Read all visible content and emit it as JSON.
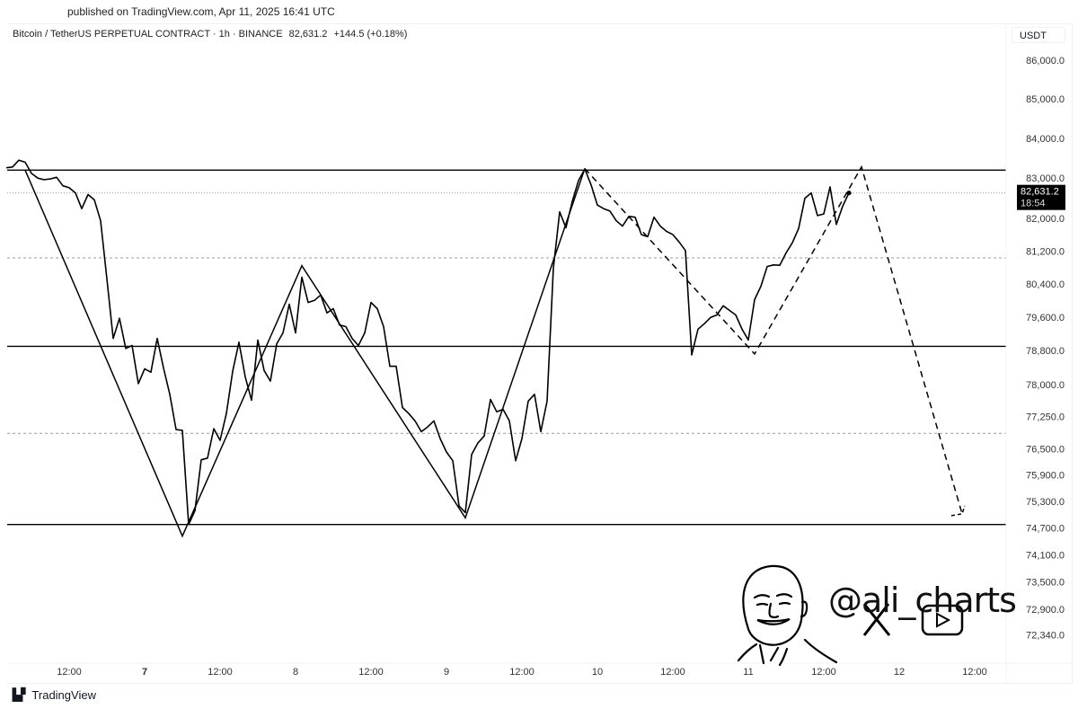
{
  "published": "published on TradingView.com, Apr 11, 2025 16:41 UTC",
  "header": {
    "symbol": "Bitcoin / TetherUS PERPETUAL CONTRACT · 1h · BINANCE",
    "last": "82,631.2",
    "change": "+144.5 (+0.18%)"
  },
  "footer": {
    "brand": "TradingView"
  },
  "watermark": {
    "handle": "@ali_charts",
    "icons": [
      "x-logo-icon",
      "youtube-icon",
      "avatar-sketch"
    ]
  },
  "chart_data": {
    "type": "line",
    "scale": "log",
    "grid": false,
    "y_unit": "USDT",
    "ylim": [
      72000,
      86400
    ],
    "xlim": [
      "2025-04-05 22:00",
      "2025-04-12 15:00"
    ],
    "y_ticks": [
      "86,000.0",
      "85,000.0",
      "84,000.0",
      "83,000.0",
      "82,000.0",
      "81,200.0",
      "80,400.0",
      "79,600.0",
      "78,800.0",
      "78,000.0",
      "77,250.0",
      "76,500.0",
      "75,900.0",
      "75,300.0",
      "74,700.0",
      "74,100.0",
      "73,500.0",
      "72,900.0",
      "72,340.0"
    ],
    "x_ticks": [
      {
        "t": "2025-04-06 12:00",
        "label": "12:00"
      },
      {
        "t": "2025-04-07 00:00",
        "label": "7",
        "bold": true
      },
      {
        "t": "2025-04-07 12:00",
        "label": "12:00"
      },
      {
        "t": "2025-04-08 00:00",
        "label": "8"
      },
      {
        "t": "2025-04-08 12:00",
        "label": "12:00"
      },
      {
        "t": "2025-04-09 00:00",
        "label": "9"
      },
      {
        "t": "2025-04-09 12:00",
        "label": "12:00"
      },
      {
        "t": "2025-04-10 00:00",
        "label": "10"
      },
      {
        "t": "2025-04-10 12:00",
        "label": "12:00"
      },
      {
        "t": "2025-04-11 00:00",
        "label": "11"
      },
      {
        "t": "2025-04-11 12:00",
        "label": "12:00"
      },
      {
        "t": "2025-04-12 00:00",
        "label": "12"
      },
      {
        "t": "2025-04-12 12:00",
        "label": "12:00"
      }
    ],
    "last_price": {
      "value": 82631.2,
      "label": "82,631.2",
      "countdown": "18:54",
      "color": "#000000"
    },
    "series": [
      {
        "color": "#000000",
        "points": [
          [
            "2025-04-06 02:00",
            83260
          ],
          [
            "2025-04-06 03:00",
            83280
          ],
          [
            "2025-04-06 04:00",
            83450
          ],
          [
            "2025-04-06 05:00",
            83400
          ],
          [
            "2025-04-06 06:00",
            83120
          ],
          [
            "2025-04-06 07:00",
            83000
          ],
          [
            "2025-04-06 08:00",
            82960
          ],
          [
            "2025-04-06 09:00",
            82980
          ],
          [
            "2025-04-06 10:00",
            83020
          ],
          [
            "2025-04-06 11:00",
            82810
          ],
          [
            "2025-04-06 12:00",
            82760
          ],
          [
            "2025-04-06 13:00",
            82630
          ],
          [
            "2025-04-06 14:00",
            82240
          ],
          [
            "2025-04-06 15:00",
            82590
          ],
          [
            "2025-04-06 16:00",
            82460
          ],
          [
            "2025-04-06 17:00",
            81940
          ],
          [
            "2025-04-06 18:00",
            80520
          ],
          [
            "2025-04-06 19:00",
            79090
          ],
          [
            "2025-04-06 20:00",
            79570
          ],
          [
            "2025-04-06 21:00",
            78850
          ],
          [
            "2025-04-06 22:00",
            78920
          ],
          [
            "2025-04-06 23:00",
            78020
          ],
          [
            "2025-04-07 00:00",
            78370
          ],
          [
            "2025-04-07 01:00",
            78290
          ],
          [
            "2025-04-07 02:00",
            79090
          ],
          [
            "2025-04-07 03:00",
            78390
          ],
          [
            "2025-04-07 04:00",
            77770
          ],
          [
            "2025-04-07 05:00",
            76950
          ],
          [
            "2025-04-07 06:00",
            76930
          ],
          [
            "2025-04-07 07:00",
            74780
          ],
          [
            "2025-04-07 08:00",
            75090
          ],
          [
            "2025-04-07 09:00",
            76250
          ],
          [
            "2025-04-07 10:00",
            76290
          ],
          [
            "2025-04-07 11:00",
            76970
          ],
          [
            "2025-04-07 12:00",
            76700
          ],
          [
            "2025-04-07 13:00",
            77320
          ],
          [
            "2025-04-07 14:00",
            78310
          ],
          [
            "2025-04-07 15:00",
            79000
          ],
          [
            "2025-04-07 16:00",
            78180
          ],
          [
            "2025-04-07 17:00",
            77630
          ],
          [
            "2025-04-07 18:00",
            79050
          ],
          [
            "2025-04-07 19:00",
            78330
          ],
          [
            "2025-04-07 20:00",
            78080
          ],
          [
            "2025-04-07 21:00",
            78960
          ],
          [
            "2025-04-07 22:00",
            79220
          ],
          [
            "2025-04-07 23:00",
            79910
          ],
          [
            "2025-04-08 00:00",
            79220
          ],
          [
            "2025-04-08 01:00",
            80560
          ],
          [
            "2025-04-08 02:00",
            79950
          ],
          [
            "2025-04-08 03:00",
            80000
          ],
          [
            "2025-04-08 04:00",
            80130
          ],
          [
            "2025-04-08 05:00",
            79700
          ],
          [
            "2025-04-08 06:00",
            79800
          ],
          [
            "2025-04-08 07:00",
            79410
          ],
          [
            "2025-04-08 08:00",
            79370
          ],
          [
            "2025-04-08 09:00",
            79090
          ],
          [
            "2025-04-08 10:00",
            78920
          ],
          [
            "2025-04-08 11:00",
            79220
          ],
          [
            "2025-04-08 12:00",
            79950
          ],
          [
            "2025-04-08 13:00",
            79800
          ],
          [
            "2025-04-08 14:00",
            79370
          ],
          [
            "2025-04-08 15:00",
            78430
          ],
          [
            "2025-04-08 16:00",
            78430
          ],
          [
            "2025-04-08 17:00",
            77460
          ],
          [
            "2025-04-08 18:00",
            77320
          ],
          [
            "2025-04-08 19:00",
            77150
          ],
          [
            "2025-04-08 20:00",
            76900
          ],
          [
            "2025-04-08 21:00",
            77010
          ],
          [
            "2025-04-08 22:00",
            77150
          ],
          [
            "2025-04-08 23:00",
            76740
          ],
          [
            "2025-04-09 00:00",
            76430
          ],
          [
            "2025-04-09 01:00",
            76230
          ],
          [
            "2025-04-09 02:00",
            75200
          ],
          [
            "2025-04-09 03:00",
            75050
          ],
          [
            "2025-04-09 04:00",
            76370
          ],
          [
            "2025-04-09 05:00",
            76640
          ],
          [
            "2025-04-09 06:00",
            76800
          ],
          [
            "2025-04-09 07:00",
            77650
          ],
          [
            "2025-04-09 08:00",
            77360
          ],
          [
            "2025-04-09 09:00",
            77420
          ],
          [
            "2025-04-09 10:00",
            77150
          ],
          [
            "2025-04-09 11:00",
            76230
          ],
          [
            "2025-04-09 12:00",
            76740
          ],
          [
            "2025-04-09 13:00",
            77610
          ],
          [
            "2025-04-09 14:00",
            77770
          ],
          [
            "2025-04-09 15:00",
            76900
          ],
          [
            "2025-04-09 16:00",
            77610
          ],
          [
            "2025-04-09 17:00",
            80780
          ],
          [
            "2025-04-09 18:00",
            82160
          ],
          [
            "2025-04-09 19:00",
            81770
          ],
          [
            "2025-04-09 20:00",
            82420
          ],
          [
            "2025-04-09 21:00",
            82940
          ],
          [
            "2025-04-09 22:00",
            83230
          ],
          [
            "2025-04-09 23:00",
            82830
          ],
          [
            "2025-04-10 00:00",
            82330
          ],
          [
            "2025-04-10 01:00",
            82240
          ],
          [
            "2025-04-10 02:00",
            82180
          ],
          [
            "2025-04-10 03:00",
            81940
          ],
          [
            "2025-04-10 04:00",
            81810
          ],
          [
            "2025-04-10 05:00",
            82050
          ],
          [
            "2025-04-10 06:00",
            82030
          ],
          [
            "2025-04-10 07:00",
            81600
          ],
          [
            "2025-04-10 08:00",
            81550
          ],
          [
            "2025-04-10 09:00",
            82030
          ],
          [
            "2025-04-10 10:00",
            81810
          ],
          [
            "2025-04-10 11:00",
            81680
          ],
          [
            "2025-04-10 12:00",
            81600
          ],
          [
            "2025-04-10 13:00",
            81420
          ],
          [
            "2025-04-10 14:00",
            81210
          ],
          [
            "2025-04-10 15:00",
            78700
          ],
          [
            "2025-04-10 16:00",
            79310
          ],
          [
            "2025-04-10 17:00",
            79440
          ],
          [
            "2025-04-10 18:00",
            79590
          ],
          [
            "2025-04-10 19:00",
            79650
          ],
          [
            "2025-04-10 20:00",
            79870
          ],
          [
            "2025-04-10 21:00",
            79760
          ],
          [
            "2025-04-10 22:00",
            79650
          ],
          [
            "2025-04-10 23:00",
            79310
          ],
          [
            "2025-04-11 00:00",
            79050
          ],
          [
            "2025-04-11 01:00",
            80020
          ],
          [
            "2025-04-11 02:00",
            80340
          ],
          [
            "2025-04-11 03:00",
            80820
          ],
          [
            "2025-04-11 04:00",
            80860
          ],
          [
            "2025-04-11 05:00",
            80850
          ],
          [
            "2025-04-11 06:00",
            81150
          ],
          [
            "2025-04-11 07:00",
            81400
          ],
          [
            "2025-04-11 08:00",
            81750
          ],
          [
            "2025-04-11 09:00",
            82500
          ],
          [
            "2025-04-11 10:00",
            82630
          ],
          [
            "2025-04-11 11:00",
            82070
          ],
          [
            "2025-04-11 12:00",
            82110
          ],
          [
            "2025-04-11 13:00",
            82780
          ],
          [
            "2025-04-11 14:00",
            81850
          ],
          [
            "2025-04-11 15:00",
            82300
          ],
          [
            "2025-04-11 16:00",
            82631.2
          ]
        ]
      }
    ],
    "horizontal_levels": [
      {
        "value": 83200,
        "style": "solid"
      },
      {
        "value": 78900,
        "style": "solid"
      },
      {
        "value": 74780,
        "style": "solid"
      },
      {
        "value": 81030,
        "style": "dashed"
      },
      {
        "value": 76860,
        "style": "dashed"
      },
      {
        "value": 82631.2,
        "style": "dotted"
      }
    ],
    "pattern_solid": [
      [
        "2025-04-06 05:00",
        83200
      ],
      [
        "2025-04-07 06:00",
        74520
      ],
      [
        "2025-04-08 01:00",
        80840
      ],
      [
        "2025-04-09 03:00",
        74930
      ],
      [
        "2025-04-09 22:00",
        83240
      ]
    ],
    "projection_dashed": [
      [
        "2025-04-09 22:00",
        83240
      ],
      [
        "2025-04-11 01:00",
        78720
      ],
      [
        "2025-04-11 18:00",
        83280
      ],
      [
        "2025-04-12 10:00",
        75020
      ]
    ]
  }
}
